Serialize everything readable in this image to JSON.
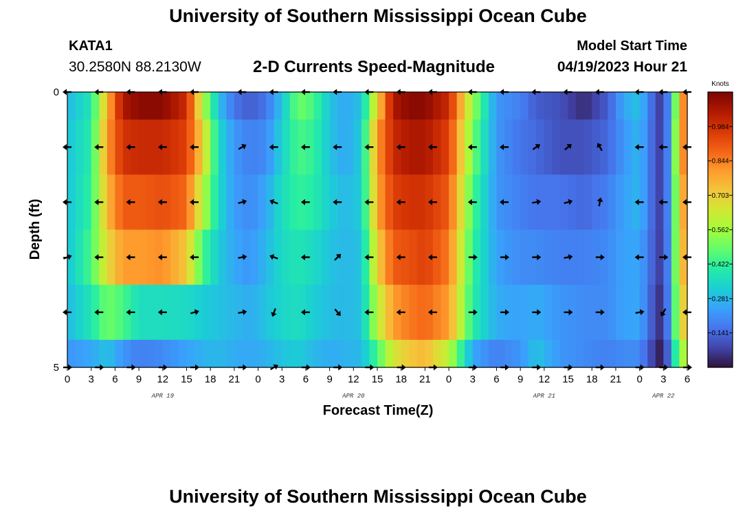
{
  "header": {
    "title": "University of Southern Mississippi Ocean Cube",
    "station": "KATA1",
    "coords": "30.2580N  88.2130W",
    "subtitle": "2-D Currents Speed-Magnitude",
    "model_start_label": "Model Start Time",
    "model_start_value": "04/19/2023 Hour 21"
  },
  "footer": {
    "title": "University of Southern Mississippi Ocean Cube"
  },
  "chart_data": {
    "type": "heatmap",
    "title": "2-D Currents Speed-Magnitude",
    "xlabel": "Forecast Time(Z)",
    "ylabel": "Depth (ft)",
    "x_start_hour_of_apr19": 0,
    "x_end_hour_of_apr19": 78,
    "x_tick_labels": [
      "0",
      "3",
      "6",
      "9",
      "12",
      "15",
      "18",
      "21",
      "0",
      "3",
      "6",
      "9",
      "12",
      "15",
      "18",
      "21",
      "0",
      "3",
      "6",
      "9",
      "12",
      "15",
      "18",
      "21",
      "0",
      "3",
      "6"
    ],
    "date_labels": [
      {
        "label": "APR 19",
        "hour": 12
      },
      {
        "label": "APR 20",
        "hour": 36
      },
      {
        "label": "APR 21",
        "hour": 60
      },
      {
        "label": "APR 22",
        "hour": 75
      }
    ],
    "ylim": [
      0,
      5
    ],
    "y_tick_labels": [
      {
        "value": 0,
        "label": "0"
      },
      {
        "value": 1,
        "label": ""
      },
      {
        "value": 2,
        "label": ""
      },
      {
        "value": 3,
        "label": ""
      },
      {
        "value": 4,
        "label": ""
      },
      {
        "value": 5,
        "label": "5"
      }
    ],
    "colorbar": {
      "unit": "Knots",
      "min": 0.0,
      "max": 1.125,
      "ticks": [
        0.141,
        0.281,
        0.422,
        0.562,
        0.703,
        0.844,
        0.984
      ]
    },
    "colors": [
      "#30123b",
      "#4145ab",
      "#4675ed",
      "#39a2fc",
      "#1bcfd4",
      "#24eca6",
      "#61fc6c",
      "#a4fc3b",
      "#d1e834",
      "#f3c63a",
      "#fe9b2d",
      "#f36315",
      "#d93806",
      "#b11901",
      "#7a0403"
    ],
    "depth_rows": [
      0.5,
      1,
      2,
      3,
      4,
      5
    ],
    "speed_keyframes": {
      "hours": [
        0,
        3,
        5,
        7,
        9,
        12,
        15,
        17,
        19,
        21,
        23,
        25,
        27,
        29,
        31,
        33,
        35,
        37,
        39,
        41,
        43,
        45,
        48,
        51,
        54,
        57,
        59,
        62,
        65,
        68,
        70,
        72,
        74,
        75,
        76,
        77,
        78
      ],
      "rows": [
        [
          0.28,
          0.38,
          0.75,
          1.05,
          1.1,
          1.1,
          1.0,
          0.6,
          0.3,
          0.16,
          0.12,
          0.16,
          0.3,
          0.5,
          0.45,
          0.3,
          0.25,
          0.3,
          0.7,
          1.05,
          1.1,
          1.1,
          1.0,
          0.55,
          0.22,
          0.18,
          0.12,
          0.1,
          0.04,
          0.12,
          0.25,
          0.3,
          0.1,
          0.05,
          0.3,
          0.7,
          0.95
        ],
        [
          0.3,
          0.4,
          0.8,
          0.98,
          1.0,
          1.0,
          0.95,
          0.7,
          0.35,
          0.22,
          0.18,
          0.2,
          0.33,
          0.45,
          0.42,
          0.3,
          0.25,
          0.32,
          0.8,
          1.0,
          1.05,
          1.05,
          0.95,
          0.5,
          0.22,
          0.16,
          0.14,
          0.1,
          0.1,
          0.14,
          0.22,
          0.28,
          0.1,
          0.06,
          0.3,
          0.75,
          0.9
        ],
        [
          0.3,
          0.42,
          0.75,
          0.9,
          0.9,
          0.92,
          0.88,
          0.6,
          0.35,
          0.23,
          0.2,
          0.25,
          0.36,
          0.42,
          0.4,
          0.32,
          0.28,
          0.32,
          0.78,
          0.95,
          0.98,
          0.98,
          0.9,
          0.45,
          0.22,
          0.18,
          0.16,
          0.16,
          0.14,
          0.18,
          0.24,
          0.28,
          0.1,
          0.06,
          0.3,
          0.7,
          0.85
        ],
        [
          0.3,
          0.45,
          0.68,
          0.8,
          0.8,
          0.82,
          0.72,
          0.45,
          0.32,
          0.25,
          0.22,
          0.28,
          0.35,
          0.38,
          0.35,
          0.3,
          0.28,
          0.3,
          0.7,
          0.9,
          0.92,
          0.95,
          0.85,
          0.42,
          0.24,
          0.2,
          0.2,
          0.18,
          0.18,
          0.2,
          0.24,
          0.25,
          0.1,
          0.05,
          0.3,
          0.7,
          0.8
        ],
        [
          0.28,
          0.38,
          0.5,
          0.45,
          0.36,
          0.36,
          0.35,
          0.32,
          0.3,
          0.28,
          0.26,
          0.3,
          0.34,
          0.36,
          0.32,
          0.29,
          0.28,
          0.3,
          0.6,
          0.8,
          0.85,
          0.88,
          0.8,
          0.4,
          0.26,
          0.24,
          0.26,
          0.22,
          0.2,
          0.2,
          0.24,
          0.25,
          0.08,
          0.03,
          0.3,
          0.65,
          0.75
        ],
        [
          0.22,
          0.25,
          0.3,
          0.22,
          0.18,
          0.2,
          0.24,
          0.27,
          0.28,
          0.26,
          0.25,
          0.27,
          0.3,
          0.32,
          0.28,
          0.26,
          0.27,
          0.28,
          0.45,
          0.65,
          0.72,
          0.75,
          0.6,
          0.25,
          0.18,
          0.22,
          0.3,
          0.22,
          0.2,
          0.18,
          0.2,
          0.2,
          0.05,
          0.0,
          0.25,
          0.55,
          0.6
        ]
      ]
    },
    "vectors": {
      "hours": [
        0,
        4,
        8,
        12,
        16,
        22,
        26,
        30,
        34,
        38,
        42,
        46,
        51,
        55,
        59,
        63,
        67,
        72,
        75,
        78
      ],
      "depths": [
        0,
        1,
        2,
        3,
        4,
        5
      ],
      "angles_deg": [
        [
          180,
          180,
          180,
          180,
          180,
          180,
          180,
          180,
          180,
          180,
          180,
          180,
          180,
          180,
          180,
          180,
          180,
          180,
          180,
          180
        ],
        [
          180,
          180,
          180,
          180,
          180,
          -30,
          180,
          180,
          180,
          180,
          180,
          180,
          180,
          180,
          -35,
          -40,
          -120,
          180,
          180,
          180
        ],
        [
          180,
          180,
          180,
          180,
          180,
          -15,
          200,
          180,
          180,
          180,
          180,
          180,
          180,
          180,
          -10,
          -15,
          -80,
          180,
          180,
          180
        ],
        [
          -20,
          180,
          180,
          180,
          180,
          -10,
          200,
          180,
          -45,
          180,
          180,
          180,
          0,
          0,
          0,
          -10,
          0,
          180,
          0,
          180
        ],
        [
          180,
          180,
          180,
          180,
          -15,
          -10,
          110,
          180,
          50,
          180,
          180,
          180,
          0,
          0,
          0,
          0,
          0,
          -10,
          120,
          180
        ],
        [
          0,
          0,
          0,
          0,
          0,
          0,
          -30,
          0,
          0,
          0,
          0,
          0,
          0,
          0,
          0,
          0,
          0,
          0,
          0,
          0
        ]
      ]
    }
  }
}
